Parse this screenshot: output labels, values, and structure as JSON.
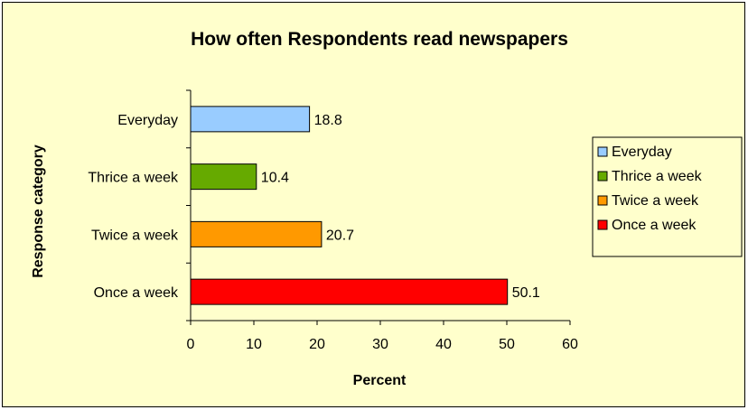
{
  "chart_data": {
    "type": "bar",
    "orientation": "horizontal",
    "title": "How often Respondents read newspapers",
    "xlabel": "Percent",
    "ylabel": "Response category",
    "categories": [
      "Everyday",
      "Thrice a week",
      "Twice a week",
      "Once a week"
    ],
    "values": [
      18.8,
      10.4,
      20.7,
      50.1
    ],
    "value_labels": [
      "18.8",
      "10.4",
      "20.7",
      "50.1"
    ],
    "colors": [
      "#99ccff",
      "#66aa00",
      "#ff9900",
      "#ff0000"
    ],
    "xlim": [
      0,
      60
    ],
    "xticks": [
      "0",
      "10",
      "20",
      "30",
      "40",
      "50",
      "60"
    ],
    "grid": false,
    "legend": {
      "position": "right",
      "entries": [
        "Everyday",
        "Thrice a week",
        "Twice a week",
        "Once a week"
      ]
    },
    "background": "#ffffcc"
  }
}
